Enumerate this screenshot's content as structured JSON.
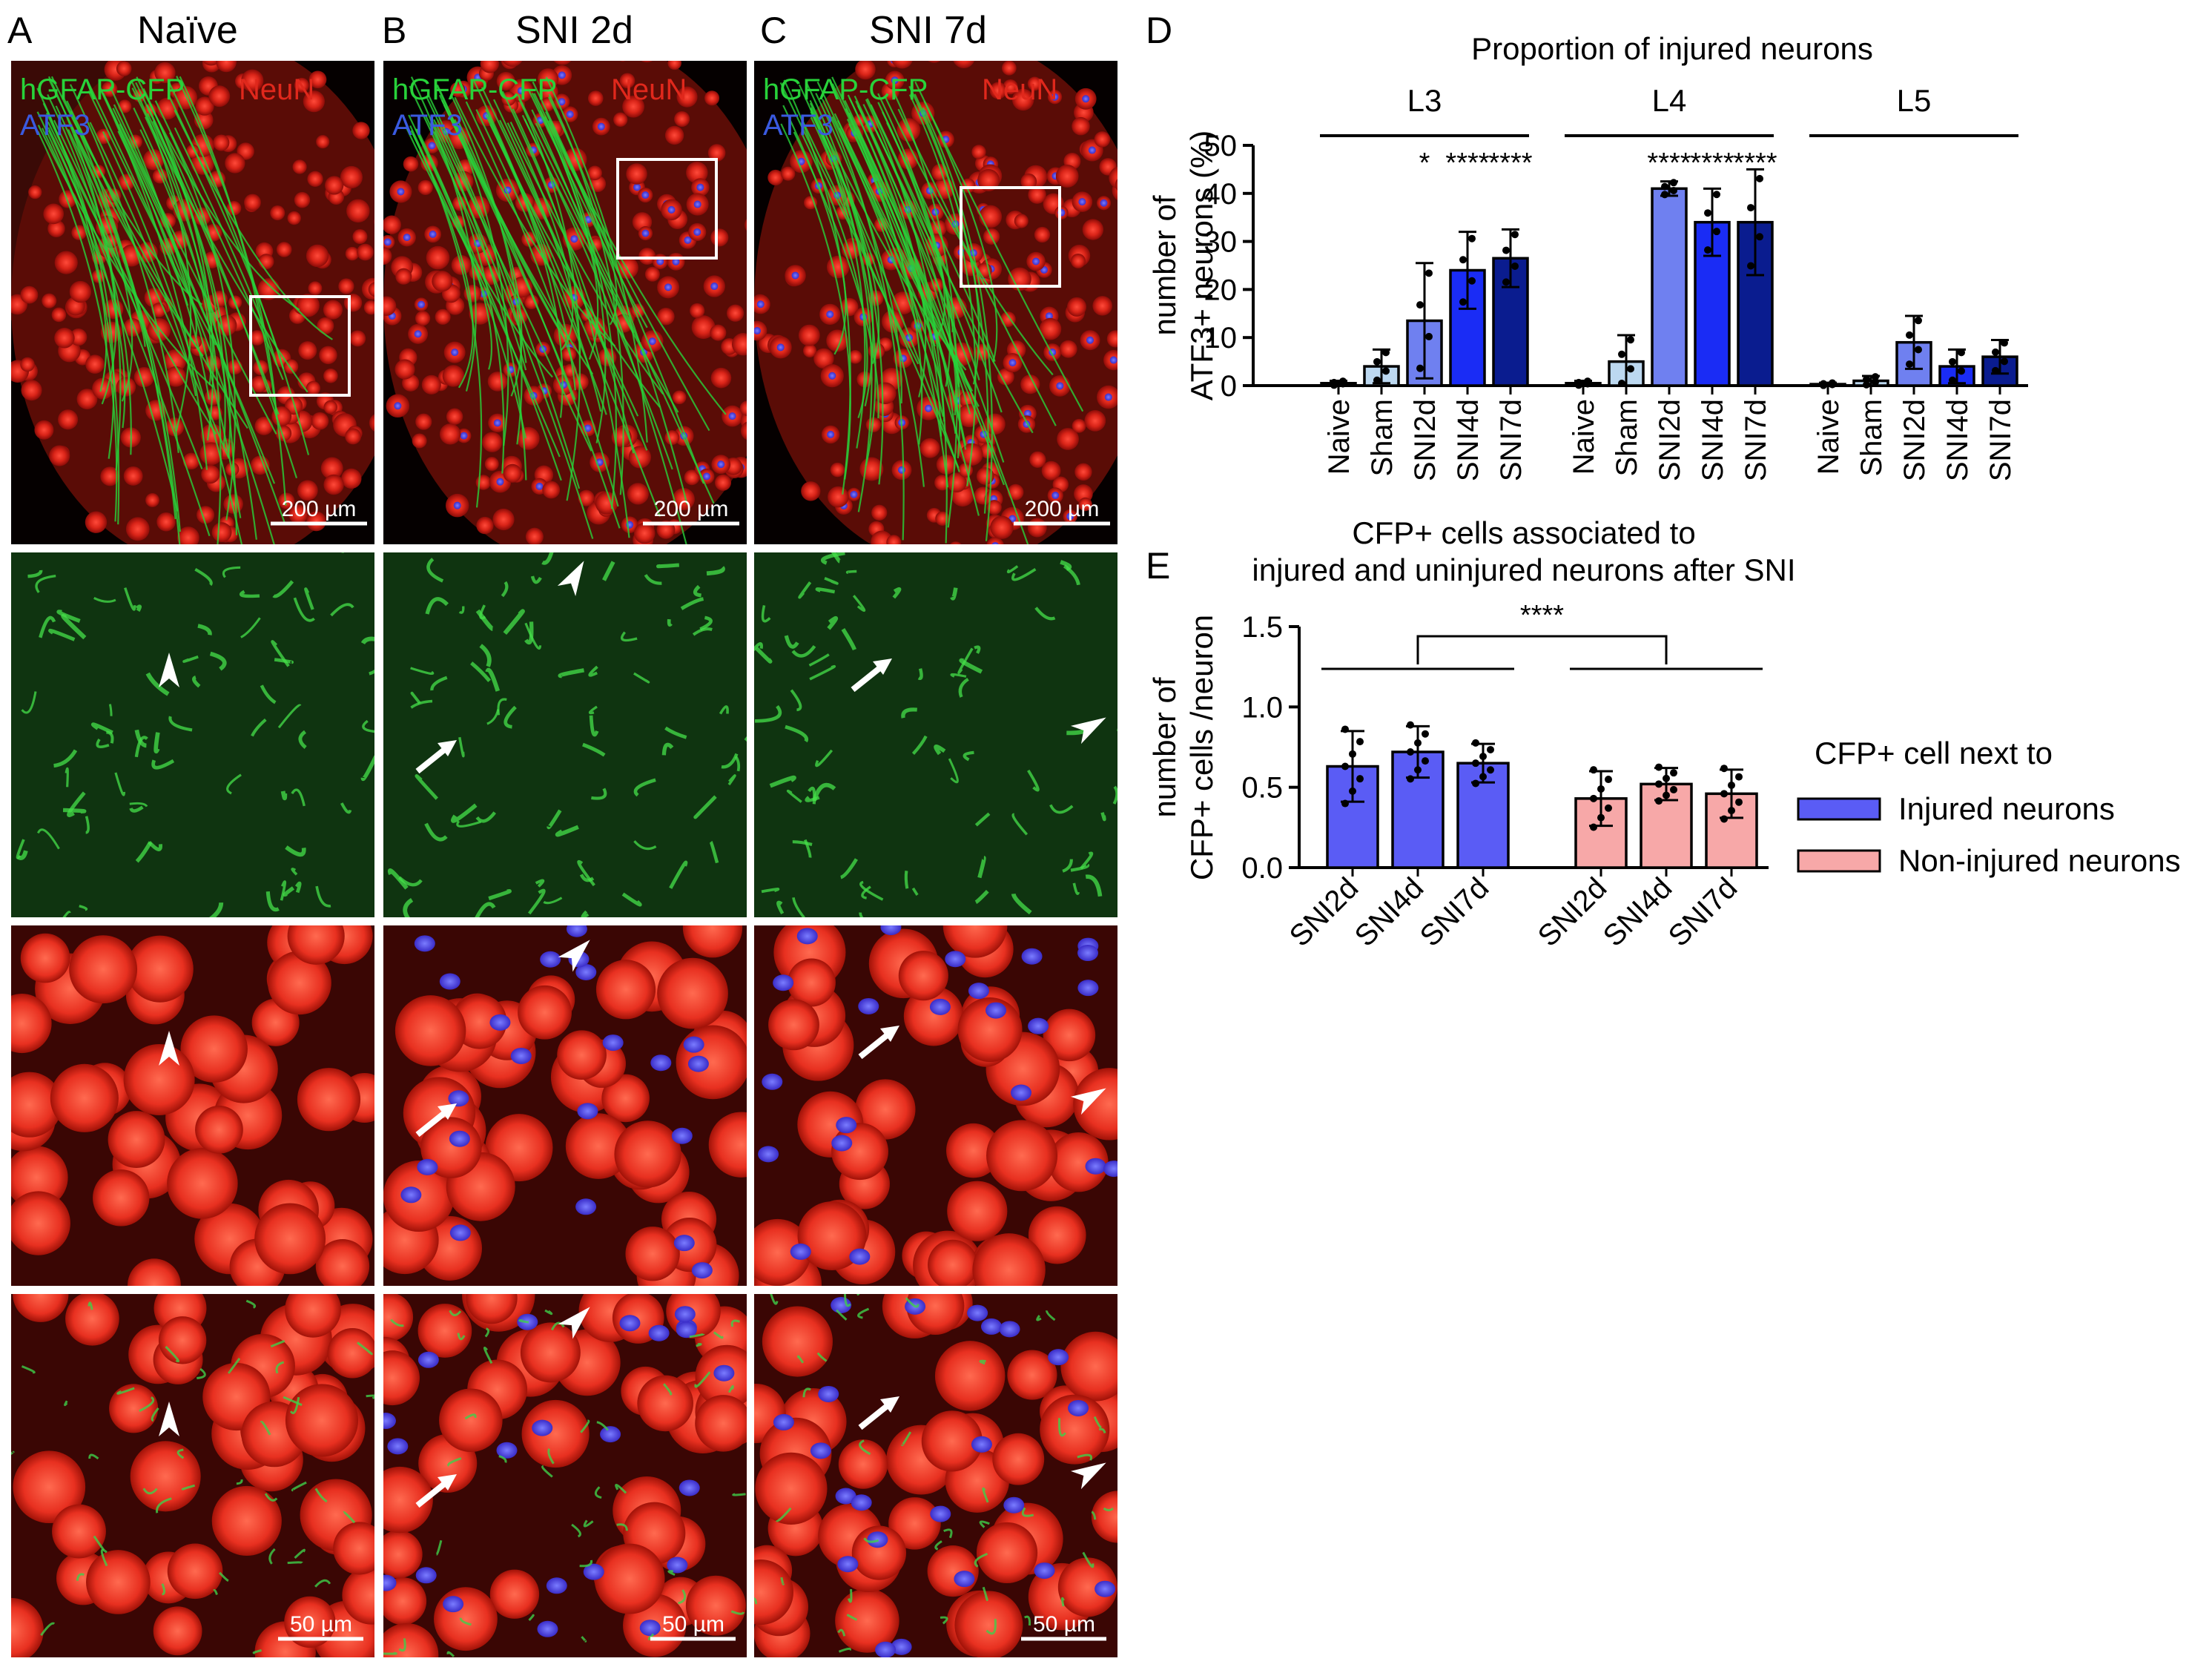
{
  "panel_letters": [
    "A",
    "B",
    "C",
    "D",
    "E"
  ],
  "columns": [
    {
      "letter": "A",
      "title": "Naïve"
    },
    {
      "letter": "B",
      "title": "SNI 2d"
    },
    {
      "letter": "C",
      "title": "SNI 7d"
    }
  ],
  "micrograph": {
    "marker_green": "hGFAP-CFP",
    "marker_red": "NeuN",
    "marker_blue": "ATF3",
    "scale_top": "200 µm",
    "scale_bottom": "50 µm",
    "colors": {
      "green": "#28d23a",
      "red": "#e0281c",
      "blue": "#3a5ae0"
    }
  },
  "panel_D": {
    "letter": "D",
    "title": "Proportion of injured neurons",
    "ylabel_line1": "number of",
    "ylabel_line2": "ATF3+ neurons (%)",
    "group_labels": [
      "L3",
      "L4",
      "L5"
    ]
  },
  "panel_E": {
    "letter": "E",
    "title_line1": "CFP+ cells associated to",
    "title_line2": "injured and uninjured neurons after SNI",
    "ylabel_line1": "number of",
    "ylabel_line2": "CFP+ cells /neuron",
    "legend_title": "CFP+ cell next to",
    "significance": "****"
  },
  "chart_data": [
    {
      "type": "bar",
      "title": "Proportion of injured neurons",
      "ylabel": "number of ATF3+ neurons (%)",
      "ylim": [
        0,
        50
      ],
      "yticks": [
        "0",
        "10",
        "20",
        "30",
        "40",
        "50"
      ],
      "groups": [
        {
          "name": "L3",
          "bars": [
            {
              "label": "Naive",
              "value": 0.5,
              "error": 0.5,
              "color": "#e8eef8",
              "sig": ""
            },
            {
              "label": "Sham",
              "value": 4,
              "error": 3.5,
              "color": "#bcd8f0",
              "sig": ""
            },
            {
              "label": "SNI2d",
              "value": 13.5,
              "error": 12,
              "color": "#6f80f0",
              "sig": "*"
            },
            {
              "label": "SNI4d",
              "value": 24,
              "error": 8,
              "color": "#1a2cf5",
              "sig": "****"
            },
            {
              "label": "SNI7d",
              "value": 26.5,
              "error": 6,
              "color": "#0a1c8f",
              "sig": "****"
            }
          ]
        },
        {
          "name": "L4",
          "bars": [
            {
              "label": "Naive",
              "value": 0.5,
              "error": 0.5,
              "color": "#e8eef8",
              "sig": ""
            },
            {
              "label": "Sham",
              "value": 5,
              "error": 5.5,
              "color": "#bcd8f0",
              "sig": ""
            },
            {
              "label": "SNI2d",
              "value": 41,
              "error": 1.5,
              "color": "#6f80f0",
              "sig": "****"
            },
            {
              "label": "SNI4d",
              "value": 34,
              "error": 7,
              "color": "#1a2cf5",
              "sig": "****"
            },
            {
              "label": "SNI7d",
              "value": 34,
              "error": 11,
              "color": "#0a1c8f",
              "sig": "****"
            }
          ]
        },
        {
          "name": "L5",
          "bars": [
            {
              "label": "Naive",
              "value": 0.3,
              "error": 0.3,
              "color": "#e8eef8",
              "sig": ""
            },
            {
              "label": "Sham",
              "value": 1,
              "error": 1,
              "color": "#bcd8f0",
              "sig": ""
            },
            {
              "label": "SNI2d",
              "value": 9,
              "error": 5.5,
              "color": "#6f80f0",
              "sig": ""
            },
            {
              "label": "SNI4d",
              "value": 4,
              "error": 3.5,
              "color": "#1a2cf5",
              "sig": ""
            },
            {
              "label": "SNI7d",
              "value": 6,
              "error": 3.5,
              "color": "#0a1c8f",
              "sig": ""
            }
          ]
        }
      ]
    },
    {
      "type": "bar",
      "title": "CFP+ cells associated to injured and uninjured neurons after SNI",
      "ylabel": "number of CFP+ cells /neuron",
      "ylim": [
        0,
        1.5
      ],
      "yticks": [
        "0.0",
        "0.5",
        "1.0",
        "1.5"
      ],
      "categories": [
        "SNI2d",
        "SNI4d",
        "SNI7d"
      ],
      "series": [
        {
          "name": "Injured neurons",
          "color": "#5a5cf5",
          "values": [
            0.63,
            0.72,
            0.65
          ],
          "errors": [
            0.22,
            0.16,
            0.12
          ]
        },
        {
          "name": "Non-injured neurons",
          "color": "#f7a8a8",
          "values": [
            0.43,
            0.52,
            0.46
          ],
          "errors": [
            0.17,
            0.1,
            0.15
          ]
        }
      ],
      "significance": "****"
    }
  ]
}
